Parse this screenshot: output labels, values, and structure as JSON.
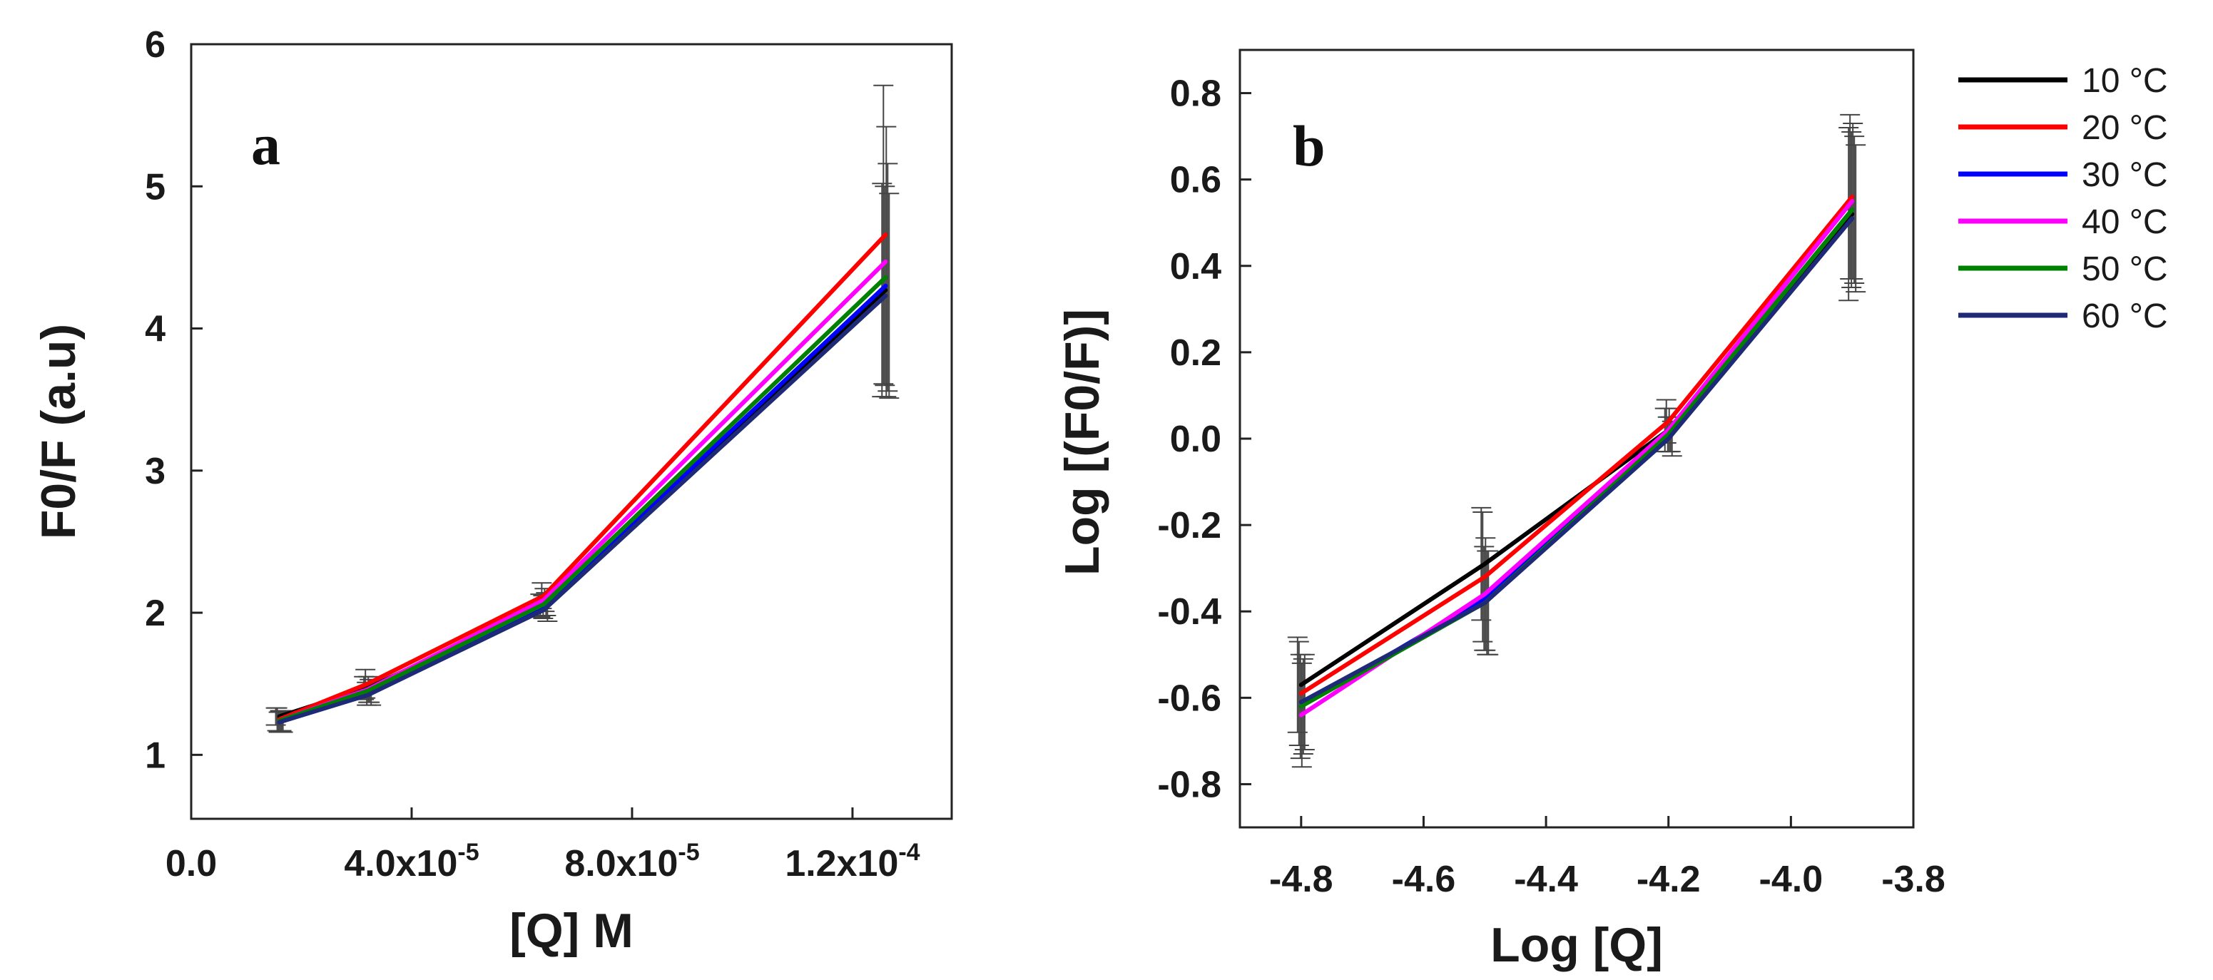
{
  "chart_data": [
    {
      "type": "line",
      "panel_label": "a",
      "xlabel": "[Q] M",
      "ylabel": "F0/F (a.u)",
      "x": [
        1.6e-05,
        3.2e-05,
        6.4e-05,
        0.000126
      ],
      "xlim": [
        0,
        0.000138
      ],
      "ylim": [
        0.55,
        6
      ],
      "xticks": [
        {
          "value": 0,
          "label": "0.0",
          "mant": "",
          "exp": ""
        },
        {
          "value": 4e-05,
          "label": "",
          "mant": "4.0x10",
          "exp": "-5"
        },
        {
          "value": 8e-05,
          "label": "",
          "mant": "8.0x10",
          "exp": "-5"
        },
        {
          "value": 0.00012,
          "label": "",
          "mant": "1.2x10",
          "exp": "-4"
        }
      ],
      "yticks": [
        {
          "value": 1,
          "label": "1"
        },
        {
          "value": 2,
          "label": "2"
        },
        {
          "value": 3,
          "label": "3"
        },
        {
          "value": 4,
          "label": "4"
        },
        {
          "value": 5,
          "label": "5"
        },
        {
          "value": 6,
          "label": "6"
        }
      ],
      "series": [
        {
          "name": "10 °C",
          "color": "#000000",
          "values": [
            1.27,
            1.47,
            2.05,
            4.27
          ],
          "errors": [
            0.06,
            0.08,
            0.08,
            0.75
          ]
        },
        {
          "name": "20 °C",
          "color": "#ff0000",
          "values": [
            1.25,
            1.5,
            2.12,
            4.66
          ],
          "errors": [
            0.08,
            0.1,
            0.09,
            1.05
          ]
        },
        {
          "name": "30 °C",
          "color": "#0000ff",
          "values": [
            1.23,
            1.43,
            2.04,
            4.3
          ],
          "errors": [
            0.07,
            0.08,
            0.08,
            0.7
          ]
        },
        {
          "name": "40 °C",
          "color": "#ff00ff",
          "values": [
            1.24,
            1.46,
            2.09,
            4.47
          ],
          "errors": [
            0.07,
            0.09,
            0.08,
            0.95
          ]
        },
        {
          "name": "50 °C",
          "color": "#008000",
          "values": [
            1.24,
            1.45,
            2.06,
            4.36
          ],
          "errors": [
            0.07,
            0.08,
            0.08,
            0.8
          ]
        },
        {
          "name": "60 °C",
          "color": "#1e2a78",
          "values": [
            1.23,
            1.42,
            2.02,
            4.23
          ],
          "errors": [
            0.07,
            0.07,
            0.08,
            0.72
          ]
        }
      ]
    },
    {
      "type": "line",
      "panel_label": "b",
      "xlabel": "Log [Q]",
      "ylabel": "Log [(F0/F)]",
      "x": [
        -4.8,
        -4.5,
        -4.2,
        -3.9
      ],
      "xlim": [
        -4.9,
        -3.8
      ],
      "ylim": [
        -0.9,
        0.9
      ],
      "xticks": [
        {
          "value": -4.8,
          "label": "-4.8"
        },
        {
          "value": -4.6,
          "label": "-4.6"
        },
        {
          "value": -4.4,
          "label": "-4.4"
        },
        {
          "value": -4.2,
          "label": "-4.2"
        },
        {
          "value": -4.0,
          "label": "-4.0"
        },
        {
          "value": -3.8,
          "label": "-3.8"
        }
      ],
      "yticks": [
        {
          "value": -0.8,
          "label": "-0.8"
        },
        {
          "value": -0.6,
          "label": "-0.6"
        },
        {
          "value": -0.4,
          "label": "-0.4"
        },
        {
          "value": -0.2,
          "label": "-0.2"
        },
        {
          "value": 0.0,
          "label": "0.0"
        },
        {
          "value": 0.2,
          "label": "0.2"
        },
        {
          "value": 0.4,
          "label": "0.4"
        },
        {
          "value": 0.6,
          "label": "0.6"
        },
        {
          "value": 0.8,
          "label": "0.8"
        }
      ],
      "series": [
        {
          "name": "10 °C",
          "color": "#000000",
          "values": [
            -0.57,
            -0.29,
            0.02,
            0.52
          ],
          "errors": [
            0.11,
            0.13,
            0.05,
            0.2
          ]
        },
        {
          "name": "20 °C",
          "color": "#ff0000",
          "values": [
            -0.59,
            -0.32,
            0.04,
            0.56
          ],
          "errors": [
            0.12,
            0.15,
            0.05,
            0.19
          ]
        },
        {
          "name": "30 °C",
          "color": "#0000ff",
          "values": [
            -0.62,
            -0.37,
            0.01,
            0.53
          ],
          "errors": [
            0.12,
            0.12,
            0.04,
            0.18
          ]
        },
        {
          "name": "40 °C",
          "color": "#ff00ff",
          "values": [
            -0.64,
            -0.36,
            0.02,
            0.55
          ],
          "errors": [
            0.12,
            0.13,
            0.05,
            0.18
          ]
        },
        {
          "name": "50 °C",
          "color": "#008000",
          "values": [
            -0.62,
            -0.38,
            0.01,
            0.53
          ],
          "errors": [
            0.11,
            0.12,
            0.04,
            0.17
          ]
        },
        {
          "name": "60 °C",
          "color": "#1e2a78",
          "values": [
            -0.61,
            -0.38,
            0.0,
            0.51
          ],
          "errors": [
            0.11,
            0.12,
            0.04,
            0.17
          ]
        }
      ]
    }
  ],
  "legend": {
    "placement": "right",
    "entries": [
      {
        "label": "10 °C",
        "color": "#000000"
      },
      {
        "label": "20 °C",
        "color": "#ff0000"
      },
      {
        "label": "30 °C",
        "color": "#0000ff"
      },
      {
        "label": "40 °C",
        "color": "#ff00ff"
      },
      {
        "label": "50 °C",
        "color": "#008000"
      },
      {
        "label": "60 °C",
        "color": "#1e2a78"
      }
    ]
  }
}
